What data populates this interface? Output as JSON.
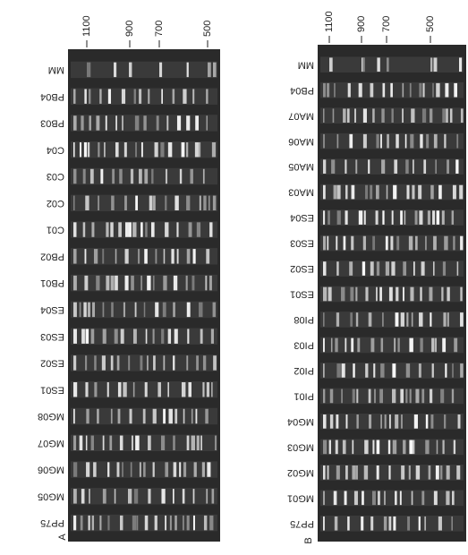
{
  "panels": [
    {
      "label": "A",
      "markers": [
        "1100",
        "900",
        "700",
        "500"
      ],
      "lanes": [
        "MM",
        "PB04",
        "PB03",
        "C04",
        "C03",
        "C02",
        "C01",
        "PB02",
        "PB01",
        "ES04",
        "ES03",
        "ES02",
        "ES01",
        "MG08",
        "MG07",
        "MG06",
        "MG05",
        "PP75"
      ]
    },
    {
      "label": "B",
      "markers": [
        "1100",
        "900",
        "700",
        "500"
      ],
      "lanes": [
        "MM",
        "PB04",
        "MA07",
        "MA06",
        "MA05",
        "MA03",
        "ES04",
        "ES03",
        "ES02",
        "ES01",
        "PI08",
        "PI03",
        "PI02",
        "PI01",
        "MG04",
        "MG03",
        "MG02",
        "MG01",
        "PP75"
      ]
    }
  ]
}
